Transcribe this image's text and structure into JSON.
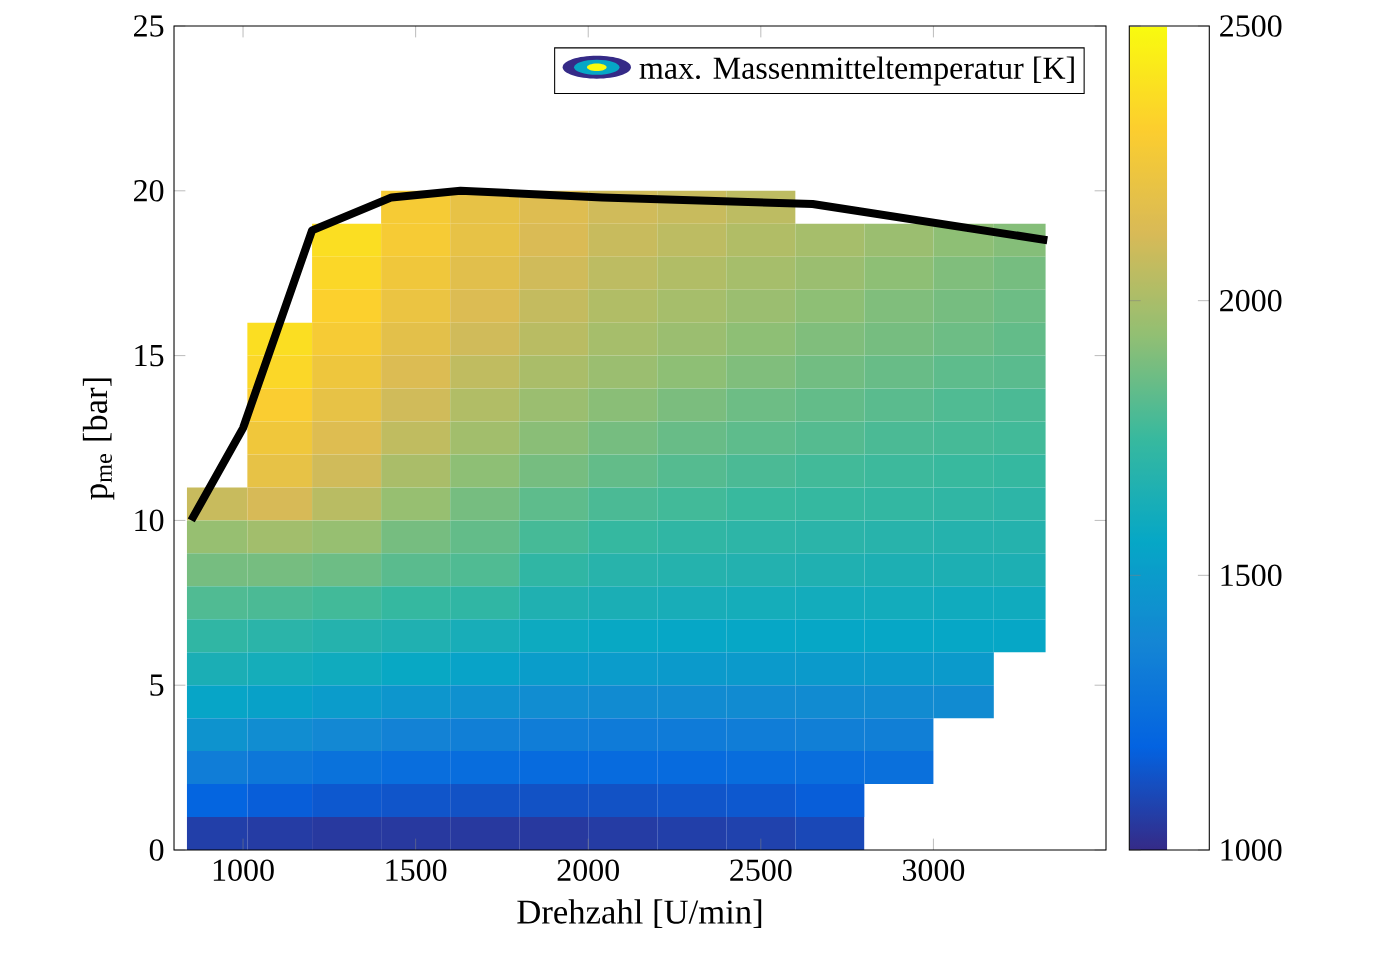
{
  "chart_data": {
    "type": "heatmap",
    "xlabel": "Drehzahl [U/min]",
    "ylabel": "p$_{me}$ [bar]",
    "legend_title": "max. Massenmitteltemperatur [K]",
    "xlim": [
      800,
      3500
    ],
    "xticks": [
      1000,
      1500,
      2000,
      2500,
      3000
    ],
    "ylim": [
      0,
      25
    ],
    "yticks": [
      0,
      5,
      10,
      15,
      20,
      25
    ],
    "clim": [
      1000,
      2500
    ],
    "cticks": [
      1000,
      1500,
      2000,
      2500
    ],
    "x": [
      925,
      1100,
      1300,
      1500,
      1700,
      1900,
      2100,
      2300,
      2500,
      2700,
      2900,
      3100,
      3250
    ],
    "y": [
      19.5,
      18.5,
      17.5,
      16.5,
      15.5,
      14.5,
      13.5,
      12.5,
      11.5,
      10.5,
      9.5,
      8.5,
      7.5,
      6.5,
      5.5,
      4.5,
      3.5,
      2.5,
      1.5,
      0.5
    ],
    "cells": [
      [
        null,
        null,
        null,
        2280,
        2200,
        2150,
        2100,
        2080,
        2050,
        null,
        null,
        null,
        null
      ],
      [
        null,
        null,
        2380,
        2280,
        2200,
        2130,
        2080,
        2050,
        2020,
        1990,
        1960,
        1930,
        1910
      ],
      [
        null,
        null,
        2350,
        2250,
        2170,
        2100,
        2050,
        2020,
        1990,
        1960,
        1930,
        1900,
        1880
      ],
      [
        null,
        null,
        2320,
        2220,
        2140,
        2070,
        2020,
        1990,
        1960,
        1930,
        1900,
        1880,
        1860
      ],
      [
        null,
        2380,
        2280,
        2180,
        2100,
        2040,
        1990,
        1960,
        1930,
        1900,
        1880,
        1860,
        1840
      ],
      [
        null,
        2350,
        2240,
        2140,
        2060,
        2000,
        1960,
        1930,
        1900,
        1870,
        1850,
        1830,
        1820
      ],
      [
        null,
        2300,
        2200,
        2100,
        2020,
        1960,
        1920,
        1890,
        1860,
        1840,
        1820,
        1800,
        1790
      ],
      [
        null,
        2250,
        2150,
        2060,
        1980,
        1920,
        1880,
        1850,
        1830,
        1810,
        1790,
        1780,
        1770
      ],
      [
        null,
        2200,
        2100,
        2000,
        1930,
        1880,
        1840,
        1810,
        1790,
        1770,
        1760,
        1750,
        1740
      ],
      [
        2080,
        2120,
        2040,
        1950,
        1880,
        1830,
        1790,
        1770,
        1750,
        1740,
        1730,
        1720,
        1710
      ],
      [
        1950,
        1980,
        1950,
        1880,
        1840,
        1780,
        1740,
        1720,
        1710,
        1700,
        1690,
        1680,
        1680
      ],
      [
        1880,
        1880,
        1860,
        1820,
        1800,
        1720,
        1690,
        1680,
        1670,
        1660,
        1650,
        1650,
        1650
      ],
      [
        1800,
        1790,
        1770,
        1740,
        1720,
        1660,
        1640,
        1630,
        1620,
        1610,
        1610,
        1600,
        1600
      ],
      [
        1720,
        1700,
        1680,
        1660,
        1630,
        1590,
        1570,
        1560,
        1560,
        1560,
        1560,
        1560,
        1560
      ],
      [
        1640,
        1620,
        1600,
        1570,
        1540,
        1510,
        1500,
        1490,
        1490,
        1490,
        1490,
        1490,
        null
      ],
      [
        1550,
        1530,
        1500,
        1470,
        1440,
        1420,
        1410,
        1410,
        1410,
        1410,
        1410,
        1410,
        null
      ],
      [
        1450,
        1420,
        1390,
        1360,
        1340,
        1330,
        1320,
        1320,
        1330,
        1340,
        1340,
        null,
        null
      ],
      [
        1330,
        1300,
        1270,
        1250,
        1240,
        1230,
        1230,
        1230,
        1240,
        1250,
        1260,
        null,
        null
      ],
      [
        1200,
        1170,
        1150,
        1140,
        1130,
        1130,
        1130,
        1140,
        1150,
        1170,
        null,
        null,
        null
      ],
      [
        1070,
        1060,
        1050,
        1050,
        1050,
        1050,
        1060,
        1070,
        1080,
        1100,
        null,
        null,
        null
      ]
    ],
    "series": [
      {
        "type": "line",
        "color": "#000000",
        "x": [
          850,
          1000,
          1200,
          1430,
          1630,
          2040,
          2650,
          3330
        ],
        "values": [
          10,
          12.8,
          18.8,
          19.8,
          20.0,
          19.8,
          19.6,
          18.5
        ]
      }
    ]
  }
}
